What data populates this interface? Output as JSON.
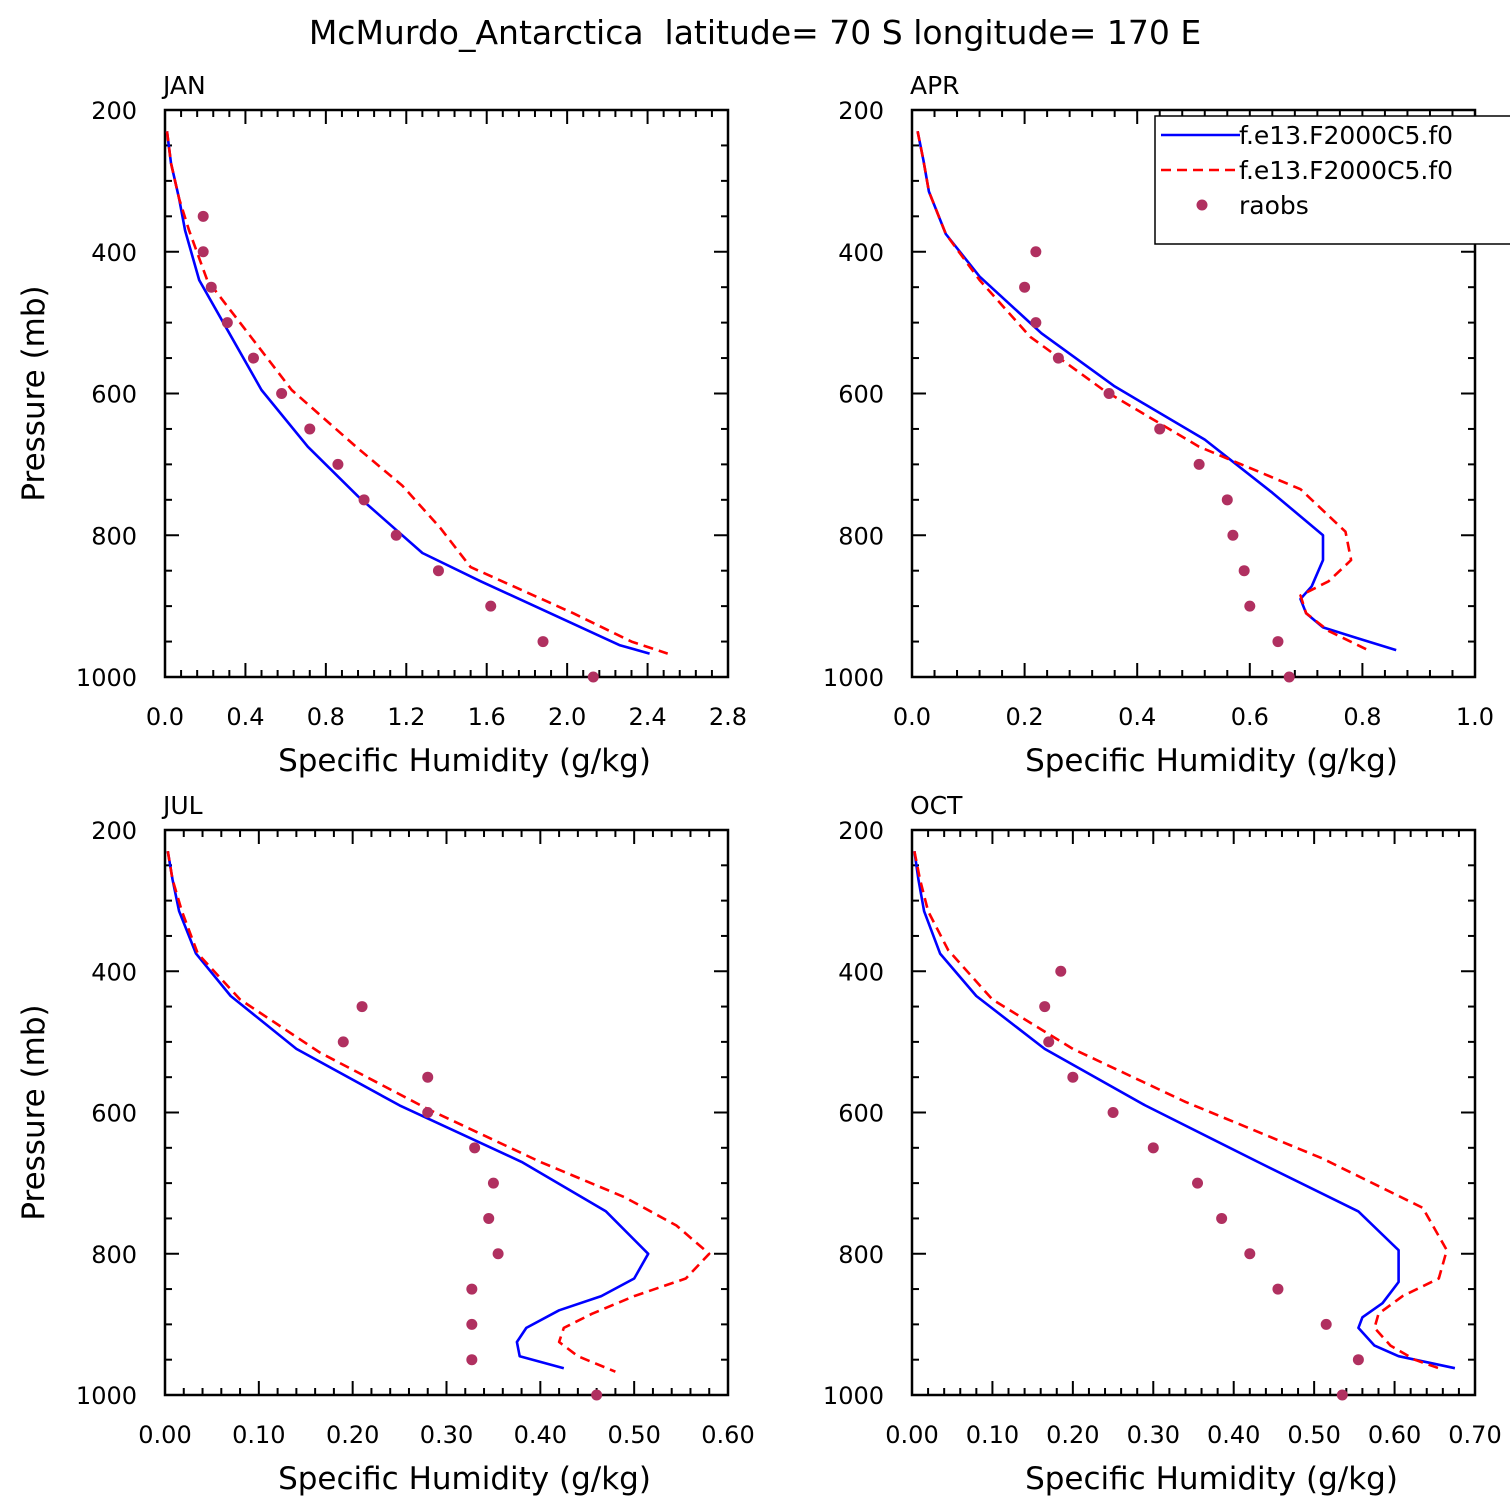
{
  "figure": {
    "title": "McMurdo_Antarctica  latitude= 70 S longitude= 170 E",
    "legend": [
      {
        "label": "f.e13.F2000C5.f0",
        "color": "#0000ff",
        "style": "solid"
      },
      {
        "label": "f.e13.F2000C5.f0",
        "color": "#ff0000",
        "style": "dashed"
      },
      {
        "label": "raobs",
        "color": "#b03060",
        "style": "marker"
      }
    ]
  },
  "chart_data": [
    {
      "type": "line",
      "title": "JAN",
      "xlabel": "Specific Humidity (g/kg)",
      "ylabel": "Pressure (mb)",
      "xlim": [
        0,
        2.8
      ],
      "ylim": [
        200,
        1000
      ],
      "y_inverted": true,
      "xticks": [
        "0.0",
        "0.4",
        "0.8",
        "1.2",
        "1.6",
        "2.0",
        "2.4",
        "2.8"
      ],
      "yticks": [
        "200",
        "400",
        "600",
        "800",
        "1000"
      ],
      "series": [
        {
          "color": "#0000ff",
          "style": "solid",
          "x": [
            0.01,
            0.03,
            0.07,
            0.1,
            0.17,
            0.31,
            0.48,
            0.71,
            0.96,
            1.28,
            1.57,
            2.03,
            2.26,
            2.41
          ],
          "y": [
            230,
            275,
            325,
            370,
            440,
            510,
            595,
            675,
            745,
            825,
            865,
            925,
            955,
            967
          ]
        },
        {
          "color": "#ff0000",
          "style": "dashed",
          "x": [
            0.01,
            0.03,
            0.07,
            0.12,
            0.21,
            0.4,
            0.63,
            0.95,
            1.18,
            1.37,
            1.52,
            2.03,
            2.32,
            2.5
          ],
          "y": [
            230,
            275,
            325,
            370,
            440,
            510,
            595,
            675,
            730,
            790,
            845,
            910,
            950,
            967
          ]
        },
        {
          "name": "raobs",
          "color": "#b03060",
          "style": "marker",
          "x": [
            0.19,
            0.19,
            0.23,
            0.31,
            0.44,
            0.58,
            0.72,
            0.86,
            0.99,
            1.15,
            1.36,
            1.62,
            1.88,
            2.13
          ],
          "y": [
            350,
            400,
            450,
            500,
            550,
            600,
            650,
            700,
            750,
            800,
            850,
            900,
            950,
            1000
          ]
        }
      ]
    },
    {
      "type": "line",
      "title": "APR",
      "xlabel": "Specific Humidity (g/kg)",
      "ylabel": "",
      "xlim": [
        0,
        1.0
      ],
      "ylim": [
        200,
        1000
      ],
      "y_inverted": true,
      "xticks": [
        "0.0",
        "0.2",
        "0.4",
        "0.6",
        "0.8",
        "1.0"
      ],
      "yticks": [
        "200",
        "400",
        "600",
        "800",
        "1000"
      ],
      "series": [
        {
          "color": "#0000ff",
          "style": "solid",
          "x": [
            0.01,
            0.02,
            0.03,
            0.06,
            0.12,
            0.23,
            0.36,
            0.52,
            0.64,
            0.73,
            0.73,
            0.71,
            0.69,
            0.7,
            0.73,
            0.79,
            0.86
          ],
          "y": [
            230,
            270,
            315,
            375,
            435,
            515,
            590,
            665,
            740,
            800,
            835,
            872,
            890,
            910,
            930,
            945,
            962
          ]
        },
        {
          "color": "#ff0000",
          "style": "dashed",
          "x": [
            0.01,
            0.02,
            0.03,
            0.06,
            0.12,
            0.21,
            0.34,
            0.51,
            0.69,
            0.77,
            0.78,
            0.74,
            0.69,
            0.7,
            0.74,
            0.81
          ],
          "y": [
            230,
            270,
            315,
            375,
            440,
            520,
            595,
            675,
            735,
            795,
            835,
            865,
            885,
            910,
            935,
            962
          ]
        },
        {
          "name": "raobs",
          "color": "#b03060",
          "style": "marker",
          "x": [
            0.22,
            0.2,
            0.22,
            0.26,
            0.35,
            0.44,
            0.51,
            0.56,
            0.57,
            0.59,
            0.6,
            0.65,
            0.67
          ],
          "y": [
            400,
            450,
            500,
            550,
            600,
            650,
            700,
            750,
            800,
            850,
            900,
            950,
            1000
          ]
        }
      ]
    },
    {
      "type": "line",
      "title": "JUL",
      "xlabel": "Specific Humidity (g/kg)",
      "ylabel": "Pressure (mb)",
      "xlim": [
        0,
        0.6
      ],
      "ylim": [
        200,
        1000
      ],
      "y_inverted": true,
      "xticks": [
        "0.00",
        "0.10",
        "0.20",
        "0.30",
        "0.40",
        "0.50",
        "0.60"
      ],
      "yticks": [
        "200",
        "400",
        "600",
        "800",
        "1000"
      ],
      "series": [
        {
          "color": "#0000ff",
          "style": "solid",
          "x": [
            0.003,
            0.008,
            0.015,
            0.033,
            0.07,
            0.14,
            0.25,
            0.38,
            0.47,
            0.515,
            0.5,
            0.465,
            0.42,
            0.385,
            0.375,
            0.378,
            0.425
          ],
          "y": [
            230,
            270,
            315,
            375,
            435,
            510,
            590,
            670,
            740,
            800,
            835,
            860,
            880,
            905,
            925,
            945,
            962
          ]
        },
        {
          "color": "#ff0000",
          "style": "dashed",
          "x": [
            0.003,
            0.008,
            0.018,
            0.035,
            0.08,
            0.165,
            0.28,
            0.4,
            0.49,
            0.545,
            0.58,
            0.555,
            0.5,
            0.455,
            0.425,
            0.42,
            0.44,
            0.48
          ],
          "y": [
            230,
            270,
            315,
            375,
            440,
            515,
            595,
            670,
            720,
            760,
            800,
            835,
            860,
            885,
            905,
            925,
            945,
            967
          ]
        },
        {
          "name": "raobs",
          "color": "#b03060",
          "style": "marker",
          "x": [
            0.21,
            0.19,
            0.28,
            0.28,
            0.33,
            0.35,
            0.345,
            0.355,
            0.327,
            0.327,
            0.327,
            0.46
          ],
          "y": [
            450,
            500,
            550,
            600,
            650,
            700,
            750,
            800,
            850,
            900,
            950,
            1000
          ]
        }
      ]
    },
    {
      "type": "line",
      "title": "OCT",
      "xlabel": "Specific Humidity (g/kg)",
      "ylabel": "",
      "xlim": [
        0,
        0.7
      ],
      "ylim": [
        200,
        1000
      ],
      "y_inverted": true,
      "xticks": [
        "0.00",
        "0.10",
        "0.20",
        "0.30",
        "0.40",
        "0.50",
        "0.60",
        "0.70"
      ],
      "yticks": [
        "200",
        "400",
        "600",
        "800",
        "1000"
      ],
      "series": [
        {
          "color": "#0000ff",
          "style": "solid",
          "x": [
            0.003,
            0.008,
            0.015,
            0.035,
            0.08,
            0.165,
            0.29,
            0.43,
            0.555,
            0.605,
            0.605,
            0.585,
            0.56,
            0.555,
            0.575,
            0.605,
            0.675
          ],
          "y": [
            230,
            270,
            315,
            375,
            435,
            510,
            590,
            670,
            740,
            795,
            840,
            870,
            890,
            905,
            930,
            945,
            962
          ]
        },
        {
          "color": "#ff0000",
          "style": "dashed",
          "x": [
            0.003,
            0.01,
            0.02,
            0.045,
            0.1,
            0.2,
            0.34,
            0.51,
            0.635,
            0.665,
            0.655,
            0.61,
            0.58,
            0.575,
            0.595,
            0.625,
            0.655
          ],
          "y": [
            230,
            270,
            315,
            370,
            440,
            510,
            585,
            665,
            735,
            795,
            835,
            860,
            885,
            905,
            930,
            950,
            962
          ]
        },
        {
          "name": "raobs",
          "color": "#b03060",
          "style": "marker",
          "x": [
            0.185,
            0.165,
            0.17,
            0.2,
            0.25,
            0.3,
            0.355,
            0.385,
            0.42,
            0.455,
            0.515,
            0.555,
            0.535
          ],
          "y": [
            400,
            450,
            500,
            550,
            600,
            650,
            700,
            750,
            800,
            850,
            900,
            950,
            1000
          ]
        }
      ]
    }
  ]
}
